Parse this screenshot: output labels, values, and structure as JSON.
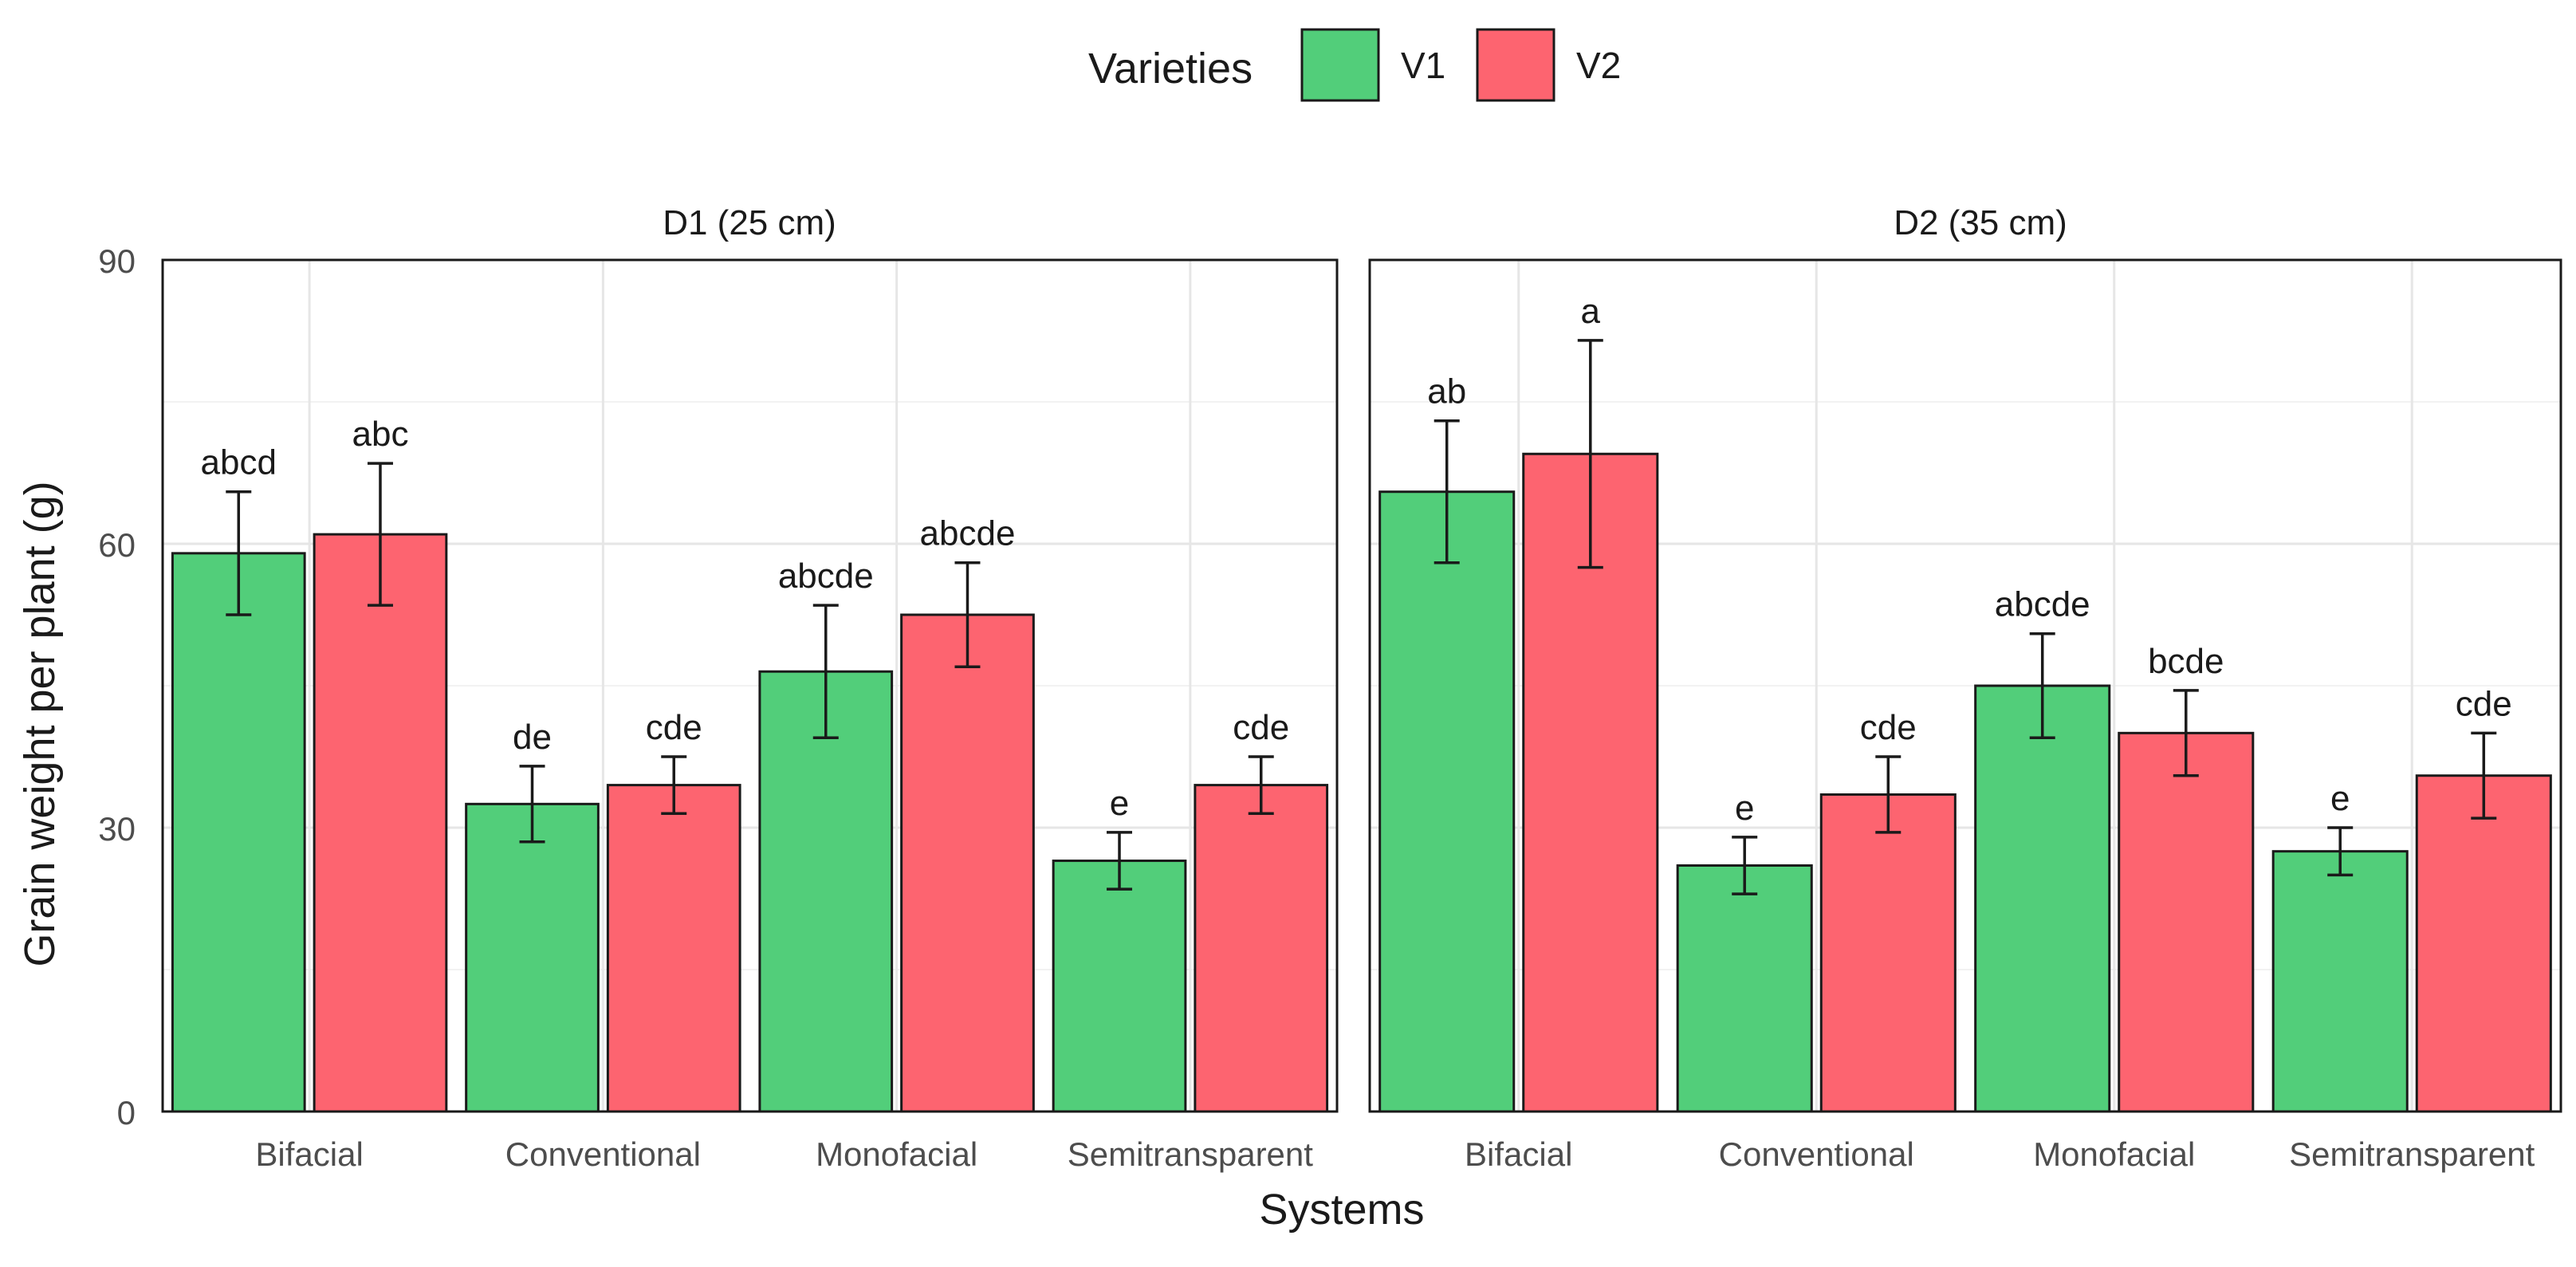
{
  "chart_data": {
    "type": "bar",
    "ylabel": "Grain weight per plant (g)",
    "xlabel": "Systems",
    "ylim": [
      0,
      90
    ],
    "yticks": [
      0,
      30,
      60,
      90
    ],
    "legend": {
      "title": "Varieties",
      "position": "top",
      "entries": [
        {
          "name": "V1",
          "color": "#52ce7a"
        },
        {
          "name": "V2",
          "color": "#fd6470"
        }
      ]
    },
    "categories": [
      "Bifacial",
      "Conventional",
      "Monofacial",
      "Semitransparent"
    ],
    "panels": [
      {
        "title": "D1 (25 cm)",
        "series": [
          {
            "name": "V1",
            "values": [
              59,
              32.5,
              46.5,
              26.5
            ],
            "errors": [
              6.5,
              4,
              7,
              3
            ],
            "labels": [
              "abcd",
              "de",
              "abcde",
              "e"
            ]
          },
          {
            "name": "V2",
            "values": [
              61,
              34.5,
              52.5,
              34.5
            ],
            "errors": [
              7.5,
              3,
              5.5,
              3
            ],
            "labels": [
              "abc",
              "cde",
              "abcde",
              "cde"
            ]
          }
        ]
      },
      {
        "title": "D2 (35 cm)",
        "series": [
          {
            "name": "V1",
            "values": [
              65.5,
              26,
              45,
              27.5
            ],
            "errors": [
              7.5,
              3,
              5.5,
              2.5
            ],
            "labels": [
              "ab",
              "e",
              "abcde",
              "e"
            ]
          },
          {
            "name": "V2",
            "values": [
              69.5,
              33.5,
              40,
              35.5
            ],
            "errors": [
              12,
              4,
              4.5,
              4.5
            ],
            "labels": [
              "a",
              "cde",
              "bcde",
              "cde"
            ]
          }
        ]
      }
    ]
  }
}
